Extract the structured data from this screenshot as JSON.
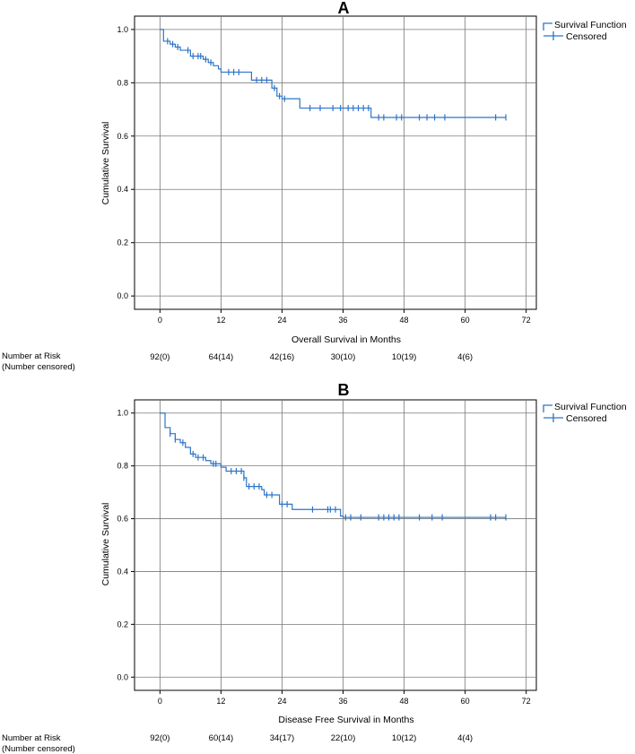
{
  "risk_table_label": [
    "Number at Risk",
    "(Number censored)"
  ],
  "chart_data": [
    {
      "type": "line",
      "subtype": "kaplan-meier",
      "title": "A",
      "xlabel": "Overall Survival in Months",
      "ylabel": "Cumulative Survival",
      "xlim": [
        -5,
        74
      ],
      "ylim": [
        -0.05,
        1.05
      ],
      "x_ticks": [
        0,
        12,
        24,
        36,
        48,
        60,
        72
      ],
      "y_ticks": [
        0.0,
        0.2,
        0.4,
        0.6,
        0.8,
        1.0
      ],
      "grid": true,
      "legend_position": "top-right",
      "line_color": "#2e74c8",
      "legend": [
        "Survival Function",
        "Censored"
      ],
      "series": [
        {
          "name": "Survival Function",
          "steps": [
            [
              0,
              1.0
            ],
            [
              0.7,
              0.956
            ],
            [
              2,
              0.945
            ],
            [
              3,
              0.934
            ],
            [
              4,
              0.922
            ],
            [
              6,
              0.9
            ],
            [
              8.5,
              0.888
            ],
            [
              9.5,
              0.876
            ],
            [
              10.5,
              0.864
            ],
            [
              11.5,
              0.852
            ],
            [
              12,
              0.84
            ],
            [
              18,
              0.81
            ],
            [
              22,
              0.78
            ],
            [
              23,
              0.75
            ],
            [
              24,
              0.74
            ],
            [
              27.5,
              0.705
            ],
            [
              41.5,
              0.67
            ],
            [
              68,
              0.67
            ]
          ],
          "censored": [
            1.5,
            2.5,
            3.5,
            5.5,
            6.5,
            7.5,
            8,
            9,
            10,
            13.5,
            14.5,
            15.5,
            19,
            20,
            21,
            22.5,
            23.5,
            24.5,
            29.5,
            31.5,
            34,
            35.5,
            37,
            38,
            39,
            40,
            41,
            43,
            44,
            46.5,
            47.5,
            51,
            52.5,
            54,
            56,
            66,
            68
          ]
        }
      ],
      "risk_times": [
        0,
        12,
        24,
        36,
        48,
        60
      ],
      "risk_values": [
        "92(0)",
        "64(14)",
        "42(16)",
        "30(10)",
        "10(19)",
        "4(6)"
      ]
    },
    {
      "type": "line",
      "subtype": "kaplan-meier",
      "title": "B",
      "xlabel": "Disease Free Survival in Months",
      "ylabel": "Cumulative Survival",
      "xlim": [
        -5,
        74
      ],
      "ylim": [
        -0.05,
        1.05
      ],
      "x_ticks": [
        0,
        12,
        24,
        36,
        48,
        60,
        72
      ],
      "y_ticks": [
        0.0,
        0.2,
        0.4,
        0.6,
        0.8,
        1.0
      ],
      "grid": true,
      "legend_position": "top-right",
      "line_color": "#2e74c8",
      "legend": [
        "Survival Function",
        "Censored"
      ],
      "series": [
        {
          "name": "Survival Function",
          "steps": [
            [
              0,
              1.0
            ],
            [
              1,
              0.945
            ],
            [
              2,
              0.922
            ],
            [
              3,
              0.9
            ],
            [
              4,
              0.888
            ],
            [
              5,
              0.87
            ],
            [
              6,
              0.845
            ],
            [
              7,
              0.832
            ],
            [
              9,
              0.82
            ],
            [
              10,
              0.808
            ],
            [
              12,
              0.795
            ],
            [
              13,
              0.78
            ],
            [
              16.5,
              0.755
            ],
            [
              17,
              0.722
            ],
            [
              20,
              0.71
            ],
            [
              20.5,
              0.69
            ],
            [
              23.5,
              0.655
            ],
            [
              26,
              0.635
            ],
            [
              35.5,
              0.61
            ],
            [
              36,
              0.605
            ],
            [
              68,
              0.605
            ]
          ],
          "censored": [
            2,
            3,
            4.5,
            6.5,
            7.5,
            8.5,
            10.5,
            11,
            14,
            15,
            16,
            16.5,
            17.5,
            18.5,
            19.5,
            21,
            22,
            24,
            25,
            30,
            33,
            33.5,
            34.5,
            36.5,
            37.5,
            39.5,
            43,
            44,
            45,
            46,
            47,
            51,
            53.5,
            55.5,
            65,
            66,
            68
          ]
        }
      ],
      "risk_times": [
        0,
        12,
        24,
        36,
        48,
        60
      ],
      "risk_values": [
        "92(0)",
        "60(14)",
        "34(17)",
        "22(10)",
        "10(12)",
        "4(4)"
      ]
    }
  ]
}
